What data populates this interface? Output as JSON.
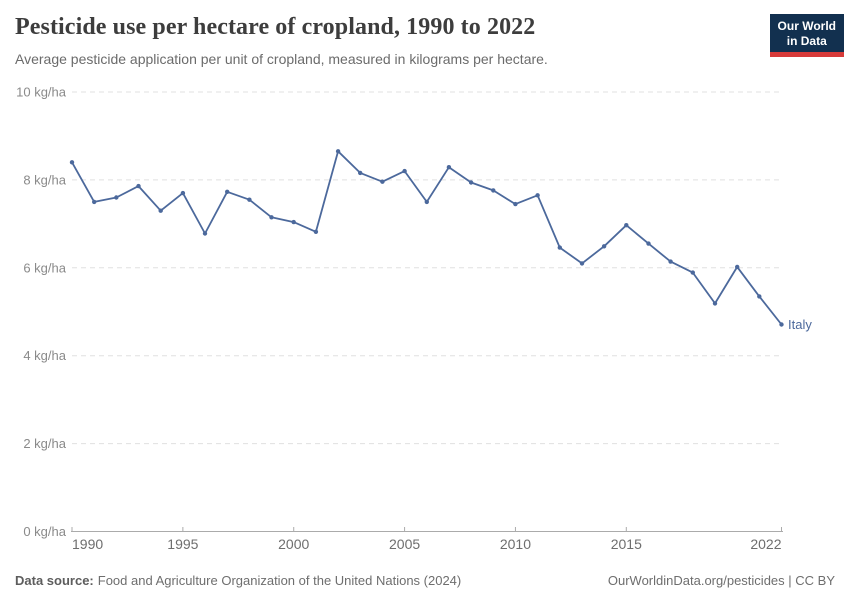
{
  "header": {
    "title": "Pesticide use per hectare of cropland, 1990 to 2022",
    "subtitle": "Average pesticide application per unit of cropland, measured in kilograms per hectare.",
    "logo": {
      "line1": "Our World",
      "line2": "in Data",
      "bg_color": "#12304f",
      "accent_color": "#d73a39",
      "text_color": "#ffffff"
    }
  },
  "chart_data": {
    "type": "line",
    "title": "Pesticide use per hectare of cropland, 1990 to 2022",
    "xlabel": "",
    "ylabel": "kg/ha",
    "xlim": [
      1990,
      2022
    ],
    "ylim": [
      0,
      10
    ],
    "x_ticks": [
      1990,
      1995,
      2000,
      2005,
      2010,
      2015,
      2022
    ],
    "y_ticks": [
      0,
      2,
      4,
      6,
      8,
      10
    ],
    "y_tick_suffix": " kg/ha",
    "grid": "horizontal-dashed",
    "legend": "series-end-label",
    "x": [
      1990,
      1991,
      1992,
      1993,
      1994,
      1995,
      1996,
      1997,
      1998,
      1999,
      2000,
      2001,
      2002,
      2003,
      2004,
      2005,
      2006,
      2007,
      2008,
      2009,
      2010,
      2011,
      2012,
      2013,
      2014,
      2015,
      2016,
      2017,
      2018,
      2019,
      2020,
      2021,
      2022
    ],
    "series": [
      {
        "name": "Italy",
        "color": "#4c699c",
        "values": [
          8.4,
          7.5,
          7.6,
          7.86,
          7.3,
          7.7,
          6.78,
          7.73,
          7.55,
          7.15,
          7.04,
          6.82,
          8.65,
          8.16,
          7.96,
          8.2,
          7.5,
          8.29,
          7.94,
          7.76,
          7.45,
          7.65,
          6.46,
          6.1,
          6.49,
          6.97,
          6.55,
          6.14,
          5.89,
          5.19,
          6.02,
          5.35,
          4.71
        ]
      }
    ],
    "colors": {
      "gridline": "#e0e0e0",
      "axis": "#ababab",
      "y_tick_label": "#8a8a8a",
      "x_tick_label": "#6e6e6e"
    }
  },
  "footer": {
    "source_label": "Data source:",
    "source_text": "Food and Agriculture Organization of the United Nations (2024)",
    "link_text": "OurWorldinData.org/pesticides | CC BY"
  }
}
